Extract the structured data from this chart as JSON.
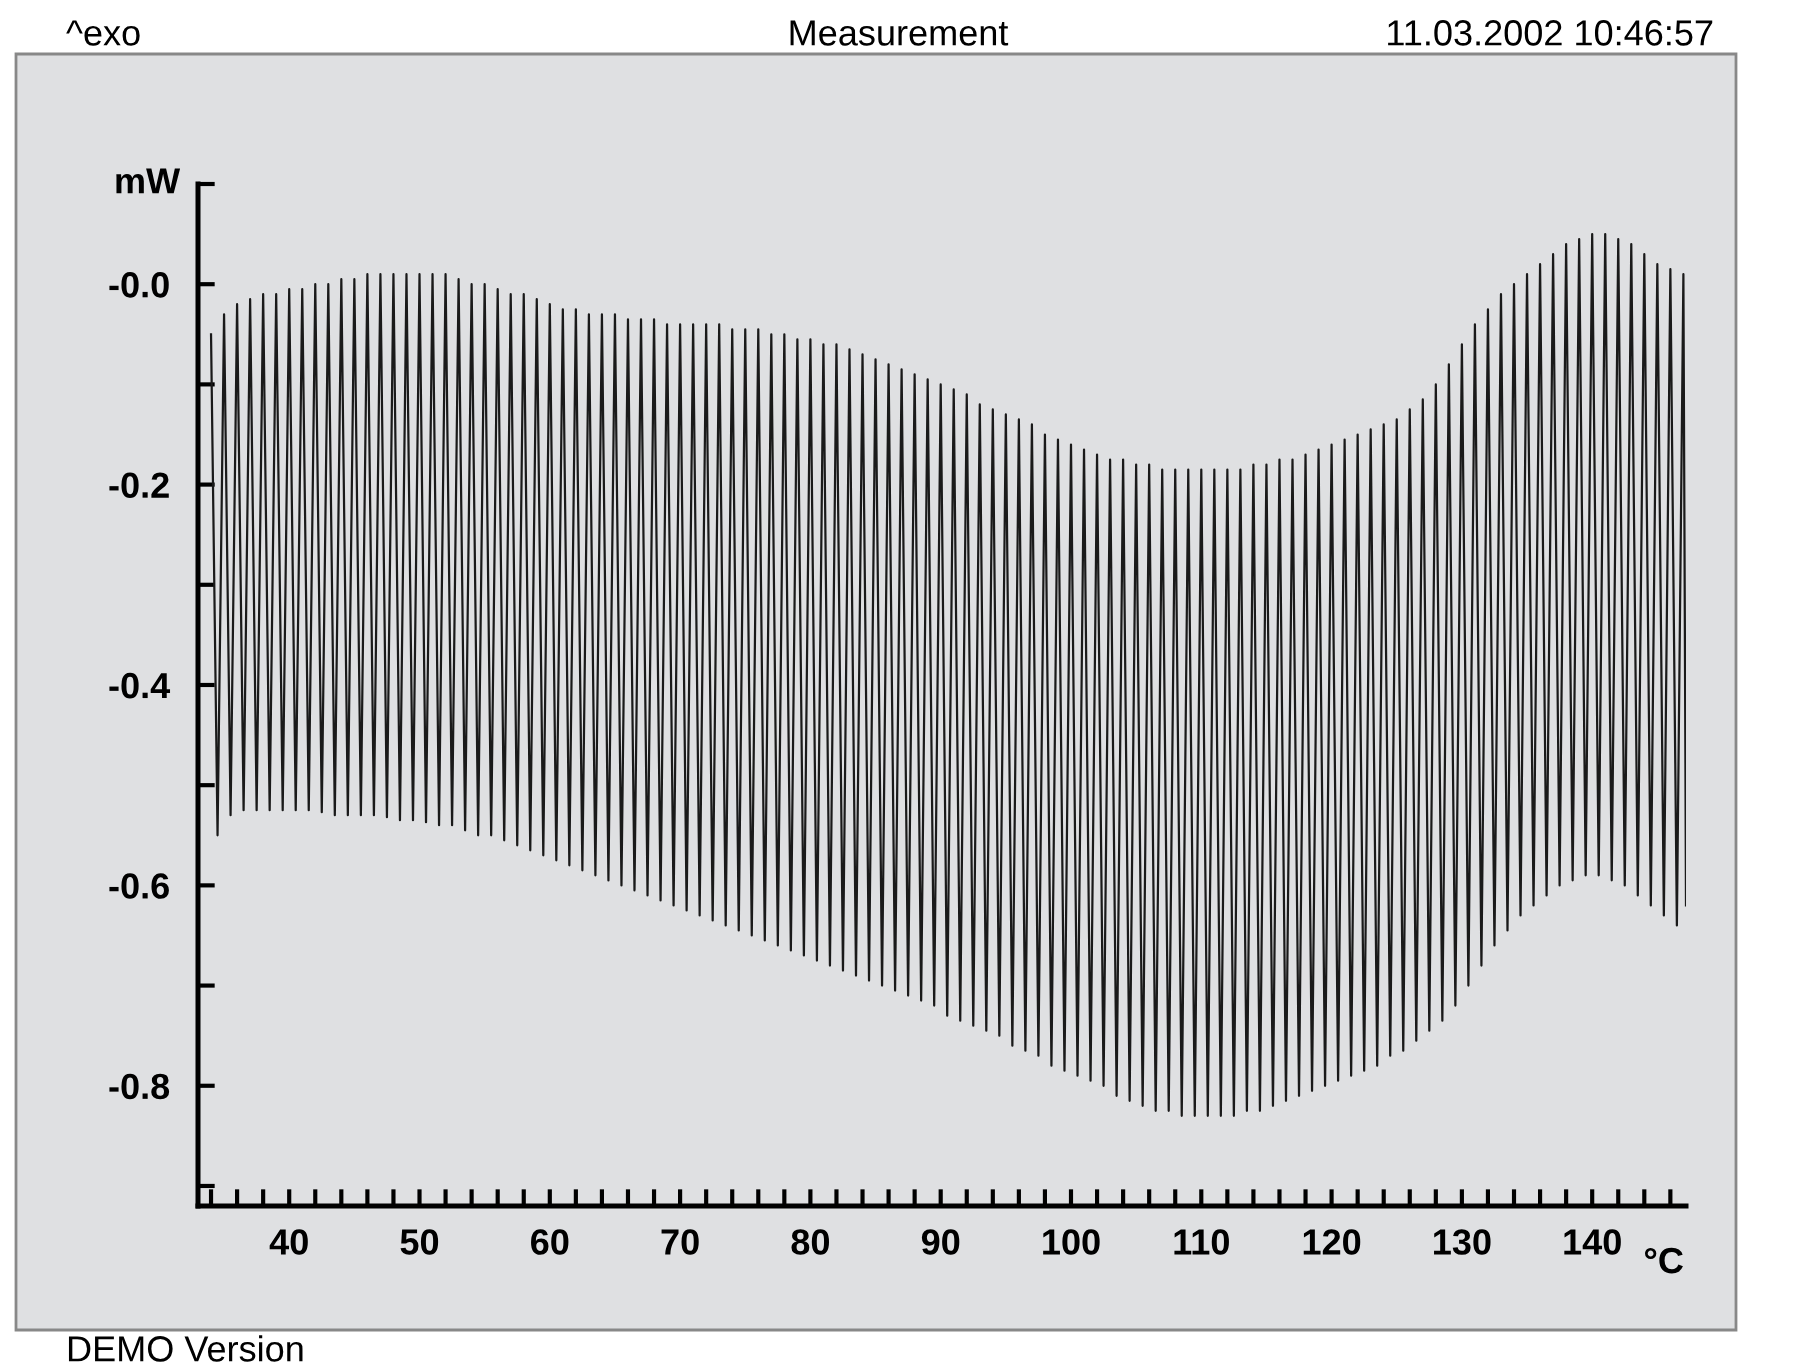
{
  "chart_data": {
    "type": "line",
    "title": "Measurement",
    "xlabel": "°C",
    "ylabel": "mW",
    "annotations": [
      "^exo",
      "11.03.2002 10:46:57",
      "DEMO Version"
    ],
    "xlim": [
      33,
      147.2
    ],
    "ylim": [
      -0.92,
      0.1
    ],
    "xticks": [
      {
        "value": 34,
        "label": null
      },
      {
        "value": 36,
        "label": null
      },
      {
        "value": 38,
        "label": null
      },
      40,
      {
        "value": 42,
        "label": null
      },
      {
        "value": 44,
        "label": null
      },
      {
        "value": 46,
        "label": null
      },
      {
        "value": 48,
        "label": null
      },
      50,
      {
        "value": 52,
        "label": null
      },
      {
        "value": 54,
        "label": null
      },
      {
        "value": 56,
        "label": null
      },
      {
        "value": 58,
        "label": null
      },
      60,
      {
        "value": 62,
        "label": null
      },
      {
        "value": 64,
        "label": null
      },
      {
        "value": 66,
        "label": null
      },
      {
        "value": 68,
        "label": null
      },
      70,
      {
        "value": 72,
        "label": null
      },
      {
        "value": 74,
        "label": null
      },
      {
        "value": 76,
        "label": null
      },
      {
        "value": 78,
        "label": null
      },
      80,
      {
        "value": 82,
        "label": null
      },
      {
        "value": 84,
        "label": null
      },
      {
        "value": 86,
        "label": null
      },
      {
        "value": 88,
        "label": null
      },
      90,
      {
        "value": 92,
        "label": null
      },
      {
        "value": 94,
        "label": null
      },
      {
        "value": 96,
        "label": null
      },
      {
        "value": 98,
        "label": null
      },
      100,
      {
        "value": 102,
        "label": null
      },
      {
        "value": 104,
        "label": null
      },
      {
        "value": 106,
        "label": null
      },
      {
        "value": 108,
        "label": null
      },
      110,
      {
        "value": 112,
        "label": null
      },
      {
        "value": 114,
        "label": null
      },
      {
        "value": 116,
        "label": null
      },
      {
        "value": 118,
        "label": null
      },
      120,
      {
        "value": 122,
        "label": null
      },
      {
        "value": 124,
        "label": null
      },
      {
        "value": 126,
        "label": null
      },
      {
        "value": 128,
        "label": null
      },
      130,
      {
        "value": 132,
        "label": null
      },
      {
        "value": 134,
        "label": null
      },
      {
        "value": 136,
        "label": null
      },
      {
        "value": 138,
        "label": null
      },
      140,
      {
        "value": 142,
        "label": null
      },
      {
        "value": 144,
        "label": null
      },
      {
        "value": 146,
        "label": null
      }
    ],
    "yticks": [
      {
        "value": 0.1,
        "label": null
      },
      {
        "value": 0,
        "label": "-0.0"
      },
      {
        "value": -0.1,
        "label": null
      },
      -0.2,
      {
        "value": -0.3,
        "label": null
      },
      -0.4,
      {
        "value": -0.5,
        "label": null
      },
      -0.6,
      {
        "value": -0.7,
        "label": null
      },
      -0.8,
      {
        "value": -0.9,
        "label": null
      }
    ],
    "grid": false,
    "legend": false,
    "marker": "none",
    "line_style": "solid",
    "series": [
      {
        "color": "#1a1a1a",
        "x": [
          34,
          34.5,
          35,
          35.5,
          36,
          36.5,
          37,
          37.5,
          38,
          38.5,
          39,
          39.5,
          40,
          40.5,
          41,
          41.5,
          42,
          42.5,
          43,
          43.5,
          44,
          44.5,
          45,
          45.5,
          46,
          46.5,
          47,
          47.5,
          48,
          48.5,
          49,
          49.5,
          50,
          50.5,
          51,
          51.5,
          52,
          52.5,
          53,
          53.5,
          54,
          54.5,
          55,
          55.5,
          56,
          56.5,
          57,
          57.5,
          58,
          58.5,
          59,
          59.5,
          60,
          60.5,
          61,
          61.5,
          62,
          62.5,
          63,
          63.5,
          64,
          64.5,
          65,
          65.5,
          66,
          66.5,
          67,
          67.5,
          68,
          68.5,
          69,
          69.5,
          70,
          70.5,
          71,
          71.5,
          72,
          72.5,
          73,
          73.5,
          74,
          74.5,
          75,
          75.5,
          76,
          76.5,
          77,
          77.5,
          78,
          78.5,
          79,
          79.5,
          80,
          80.5,
          81,
          81.5,
          82,
          82.5,
          83,
          83.5,
          84,
          84.5,
          85,
          85.5,
          86,
          86.5,
          87,
          87.5,
          88,
          88.5,
          89,
          89.5,
          90,
          90.5,
          91,
          91.5,
          92,
          92.5,
          93,
          93.5,
          94,
          94.5,
          95,
          95.5,
          96,
          96.5,
          97,
          97.5,
          98,
          98.5,
          99,
          99.5,
          100,
          100.5,
          101,
          101.5,
          102,
          102.5,
          103,
          103.5,
          104,
          104.5,
          105,
          105.5,
          106,
          106.5,
          107,
          107.5,
          108,
          108.5,
          109,
          109.5,
          110,
          110.5,
          111,
          111.5,
          112,
          112.5,
          113,
          113.5,
          114,
          114.5,
          115,
          115.5,
          116,
          116.5,
          117,
          117.5,
          118,
          118.5,
          119,
          119.5,
          120,
          120.5,
          121,
          121.5,
          122,
          122.5,
          123,
          123.5,
          124,
          124.5,
          125,
          125.5,
          126,
          126.5,
          127,
          127.5,
          128,
          128.5,
          129,
          129.5,
          130,
          130.5,
          131,
          131.5,
          132,
          132.5,
          133,
          133.5,
          134,
          134.5,
          135,
          135.5,
          136,
          136.5,
          137,
          137.5,
          138,
          138.5,
          139,
          139.5,
          140,
          140.5,
          141,
          141.5,
          142,
          142.5,
          143,
          143.5,
          144,
          144.5,
          145,
          145.5,
          146,
          146.5,
          147,
          147.2
        ],
        "values": [
          -0.05,
          -0.55,
          -0.03,
          -0.53,
          -0.02,
          -0.525,
          -0.015,
          -0.525,
          -0.01,
          -0.525,
          -0.01,
          -0.525,
          -0.005,
          -0.525,
          -0.005,
          -0.525,
          0.0,
          -0.527,
          0.0,
          -0.53,
          0.005,
          -0.53,
          0.005,
          -0.53,
          0.01,
          -0.53,
          0.01,
          -0.532,
          0.01,
          -0.535,
          0.01,
          -0.535,
          0.01,
          -0.537,
          0.01,
          -0.54,
          0.01,
          -0.54,
          0.005,
          -0.545,
          0.0,
          -0.55,
          0.0,
          -0.55,
          -0.005,
          -0.555,
          -0.01,
          -0.56,
          -0.01,
          -0.565,
          -0.015,
          -0.57,
          -0.02,
          -0.575,
          -0.025,
          -0.58,
          -0.025,
          -0.585,
          -0.03,
          -0.59,
          -0.03,
          -0.595,
          -0.03,
          -0.6,
          -0.035,
          -0.605,
          -0.035,
          -0.61,
          -0.035,
          -0.615,
          -0.04,
          -0.62,
          -0.04,
          -0.625,
          -0.04,
          -0.63,
          -0.04,
          -0.635,
          -0.04,
          -0.64,
          -0.045,
          -0.645,
          -0.045,
          -0.65,
          -0.045,
          -0.655,
          -0.05,
          -0.66,
          -0.05,
          -0.665,
          -0.055,
          -0.67,
          -0.055,
          -0.675,
          -0.06,
          -0.68,
          -0.06,
          -0.685,
          -0.065,
          -0.69,
          -0.07,
          -0.695,
          -0.075,
          -0.7,
          -0.08,
          -0.705,
          -0.085,
          -0.71,
          -0.09,
          -0.715,
          -0.095,
          -0.72,
          -0.1,
          -0.73,
          -0.105,
          -0.735,
          -0.11,
          -0.74,
          -0.12,
          -0.745,
          -0.125,
          -0.75,
          -0.13,
          -0.76,
          -0.135,
          -0.765,
          -0.14,
          -0.77,
          -0.15,
          -0.78,
          -0.155,
          -0.785,
          -0.16,
          -0.79,
          -0.165,
          -0.795,
          -0.17,
          -0.8,
          -0.175,
          -0.81,
          -0.175,
          -0.815,
          -0.18,
          -0.82,
          -0.18,
          -0.825,
          -0.185,
          -0.825,
          -0.185,
          -0.83,
          -0.185,
          -0.83,
          -0.185,
          -0.83,
          -0.185,
          -0.83,
          -0.185,
          -0.83,
          -0.185,
          -0.825,
          -0.18,
          -0.825,
          -0.18,
          -0.82,
          -0.175,
          -0.815,
          -0.175,
          -0.81,
          -0.17,
          -0.805,
          -0.165,
          -0.8,
          -0.16,
          -0.795,
          -0.155,
          -0.79,
          -0.15,
          -0.785,
          -0.145,
          -0.78,
          -0.14,
          -0.77,
          -0.135,
          -0.765,
          -0.125,
          -0.755,
          -0.115,
          -0.745,
          -0.1,
          -0.735,
          -0.08,
          -0.72,
          -0.06,
          -0.7,
          -0.04,
          -0.68,
          -0.025,
          -0.66,
          -0.01,
          -0.645,
          0.0,
          -0.63,
          0.01,
          -0.62,
          0.02,
          -0.61,
          0.03,
          -0.6,
          0.04,
          -0.595,
          0.045,
          -0.59,
          0.05,
          -0.59,
          0.05,
          -0.595,
          0.045,
          -0.6,
          0.04,
          -0.61,
          0.03,
          -0.62,
          0.02,
          -0.63,
          0.015,
          -0.64,
          0.01,
          -0.62
        ]
      }
    ]
  }
}
